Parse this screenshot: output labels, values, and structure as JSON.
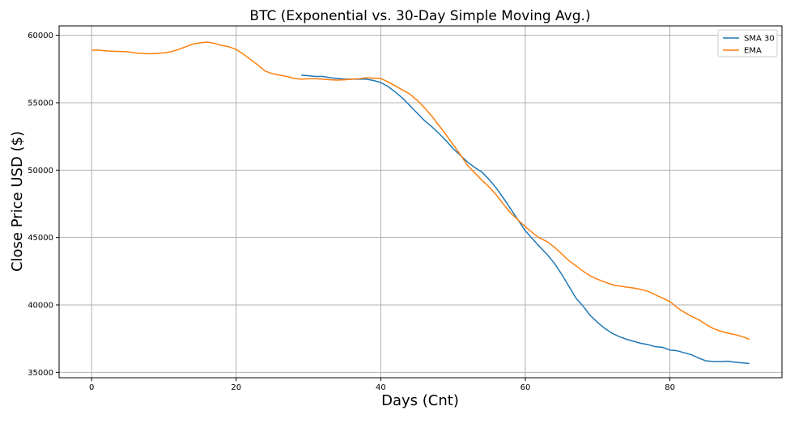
{
  "chart_data": {
    "type": "line",
    "title": "BTC (Exponential vs. 30-Day Simple Moving Avg.)",
    "xlabel": "Days (Cnt)",
    "ylabel": "Close Price USD ($)",
    "xlim": [
      -4.5,
      95.5
    ],
    "ylim": [
      34600,
      60700
    ],
    "xticks": [
      0,
      20,
      40,
      60,
      80
    ],
    "yticks": [
      35000,
      40000,
      45000,
      50000,
      55000,
      60000
    ],
    "grid": true,
    "legend_position": "top-right",
    "series": [
      {
        "name": "SMA 30",
        "color": "#1f77b4",
        "x": [
          29,
          30,
          31,
          32,
          33,
          34,
          35,
          36,
          37,
          38,
          39,
          40,
          41,
          42,
          43,
          44,
          45,
          46,
          47,
          48,
          49,
          50,
          51,
          52,
          53,
          54,
          55,
          56,
          57,
          58,
          59,
          60,
          61,
          62,
          63,
          64,
          65,
          66,
          67,
          68,
          69,
          70,
          71,
          72,
          73,
          74,
          75,
          76,
          77,
          78,
          79,
          80,
          81,
          82,
          83,
          84,
          85,
          86,
          87,
          88,
          89,
          90,
          91
        ],
        "y": [
          57050,
          57000,
          56950,
          56950,
          56850,
          56800,
          56750,
          56750,
          56750,
          56750,
          56650,
          56500,
          56200,
          55800,
          55350,
          54800,
          54250,
          53700,
          53250,
          52750,
          52200,
          51600,
          51100,
          50600,
          50200,
          49850,
          49300,
          48650,
          47900,
          47100,
          46300,
          45500,
          44900,
          44300,
          43750,
          43100,
          42300,
          41400,
          40500,
          39900,
          39200,
          38700,
          38250,
          37900,
          37650,
          37450,
          37300,
          37150,
          37050,
          36900,
          36850,
          36650,
          36600,
          36450,
          36300,
          36050,
          35850,
          35800,
          35800,
          35820,
          35750,
          35700,
          35650
        ]
      },
      {
        "name": "EMA",
        "color": "#ff7f0e",
        "x": [
          0,
          1,
          2,
          3,
          4,
          5,
          6,
          7,
          8,
          9,
          10,
          11,
          12,
          13,
          14,
          15,
          16,
          17,
          18,
          19,
          20,
          21,
          22,
          23,
          24,
          25,
          26,
          27,
          28,
          29,
          30,
          31,
          32,
          33,
          34,
          35,
          36,
          37,
          38,
          39,
          40,
          41,
          42,
          43,
          44,
          45,
          46,
          47,
          48,
          49,
          50,
          51,
          52,
          53,
          54,
          55,
          56,
          57,
          58,
          59,
          60,
          61,
          62,
          63,
          64,
          65,
          66,
          67,
          68,
          69,
          70,
          71,
          72,
          73,
          74,
          75,
          76,
          77,
          78,
          79,
          80,
          81,
          82,
          83,
          84,
          85,
          86,
          87,
          88,
          89,
          90,
          91
        ],
        "y": [
          58900,
          58900,
          58850,
          58820,
          58800,
          58780,
          58700,
          58650,
          58630,
          58650,
          58700,
          58780,
          58950,
          59150,
          59350,
          59450,
          59500,
          59400,
          59250,
          59150,
          58950,
          58600,
          58200,
          57800,
          57350,
          57150,
          57050,
          56950,
          56800,
          56750,
          56780,
          56780,
          56750,
          56700,
          56680,
          56700,
          56750,
          56780,
          56850,
          56820,
          56800,
          56550,
          56250,
          55950,
          55650,
          55200,
          54650,
          54050,
          53350,
          52650,
          51900,
          51150,
          50350,
          49800,
          49250,
          48750,
          48150,
          47450,
          46800,
          46300,
          45800,
          45350,
          44950,
          44700,
          44300,
          43800,
          43300,
          42900,
          42500,
          42150,
          41900,
          41700,
          41500,
          41400,
          41320,
          41250,
          41150,
          41000,
          40750,
          40500,
          40250,
          39800,
          39450,
          39150,
          38900,
          38550,
          38250,
          38050,
          37900,
          37800,
          37650,
          37450
        ]
      }
    ]
  }
}
